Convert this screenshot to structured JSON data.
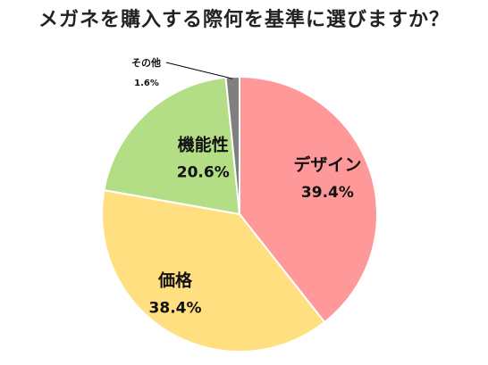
{
  "chart_data": {
    "type": "pie",
    "title": "メガネを購入する際何を基準に選びますか？",
    "start_angle_deg": 0,
    "direction": "clockwise",
    "slices": [
      {
        "name": "デザイン",
        "value": 39.4,
        "value_label": "39.4%",
        "color": "#ff9999",
        "label_placement": "inside"
      },
      {
        "name": "価格",
        "value": 38.4,
        "value_label": "38.4%",
        "color": "#ffdf80",
        "label_placement": "inside"
      },
      {
        "name": "機能性",
        "value": 20.6,
        "value_label": "20.6%",
        "color": "#b3de85",
        "label_placement": "inside"
      },
      {
        "name": "その他",
        "value": 1.6,
        "value_label": "1.6%",
        "color": "#7f7f7f",
        "label_placement": "outside-leader"
      }
    ]
  }
}
